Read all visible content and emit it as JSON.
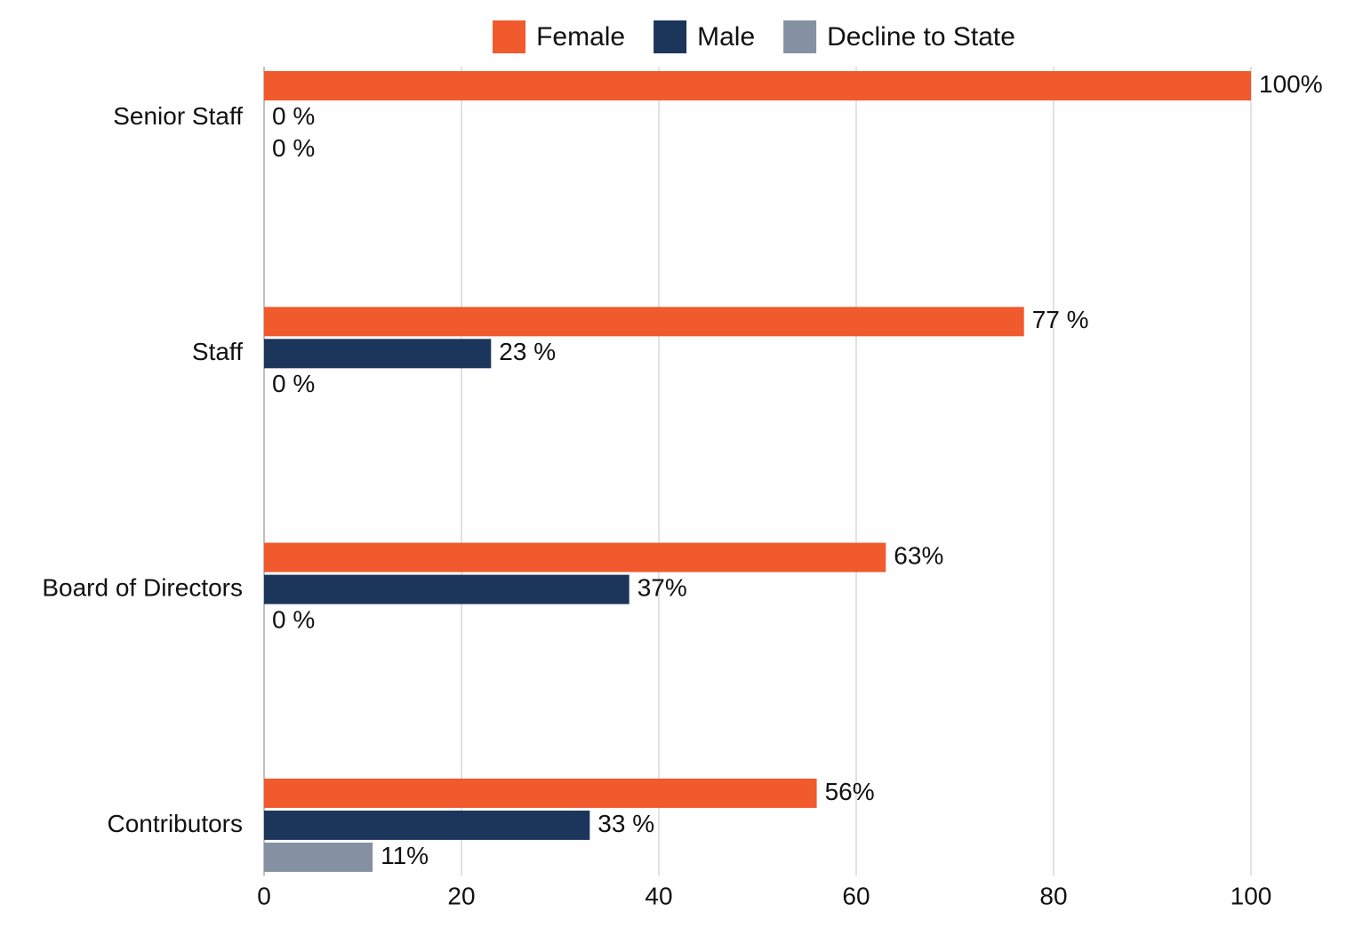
{
  "chart_data": {
    "type": "hbar",
    "categories": [
      "Senior Staff",
      "Staff",
      "Board of Directors",
      "Contributors"
    ],
    "series": [
      {
        "name": "Female",
        "color": "#f05a2c",
        "values": [
          100,
          77,
          63,
          56
        ],
        "value_labels": [
          "100%",
          "77 %",
          "63%",
          "56%"
        ]
      },
      {
        "name": "Male",
        "color": "#1b355b",
        "values": [
          0,
          23,
          37,
          33
        ],
        "value_labels": [
          "0 %",
          "23 %",
          "37%",
          "33 %"
        ]
      },
      {
        "name": "Decline to State",
        "color": "#8591a3",
        "values": [
          0,
          0,
          0,
          11
        ],
        "value_labels": [
          "0 %",
          "0 %",
          "0 %",
          "11%"
        ]
      }
    ],
    "xlim": [
      0,
      100
    ],
    "xticks": [
      0,
      20,
      40,
      60,
      80,
      100
    ],
    "grid": true,
    "legend": "top"
  }
}
